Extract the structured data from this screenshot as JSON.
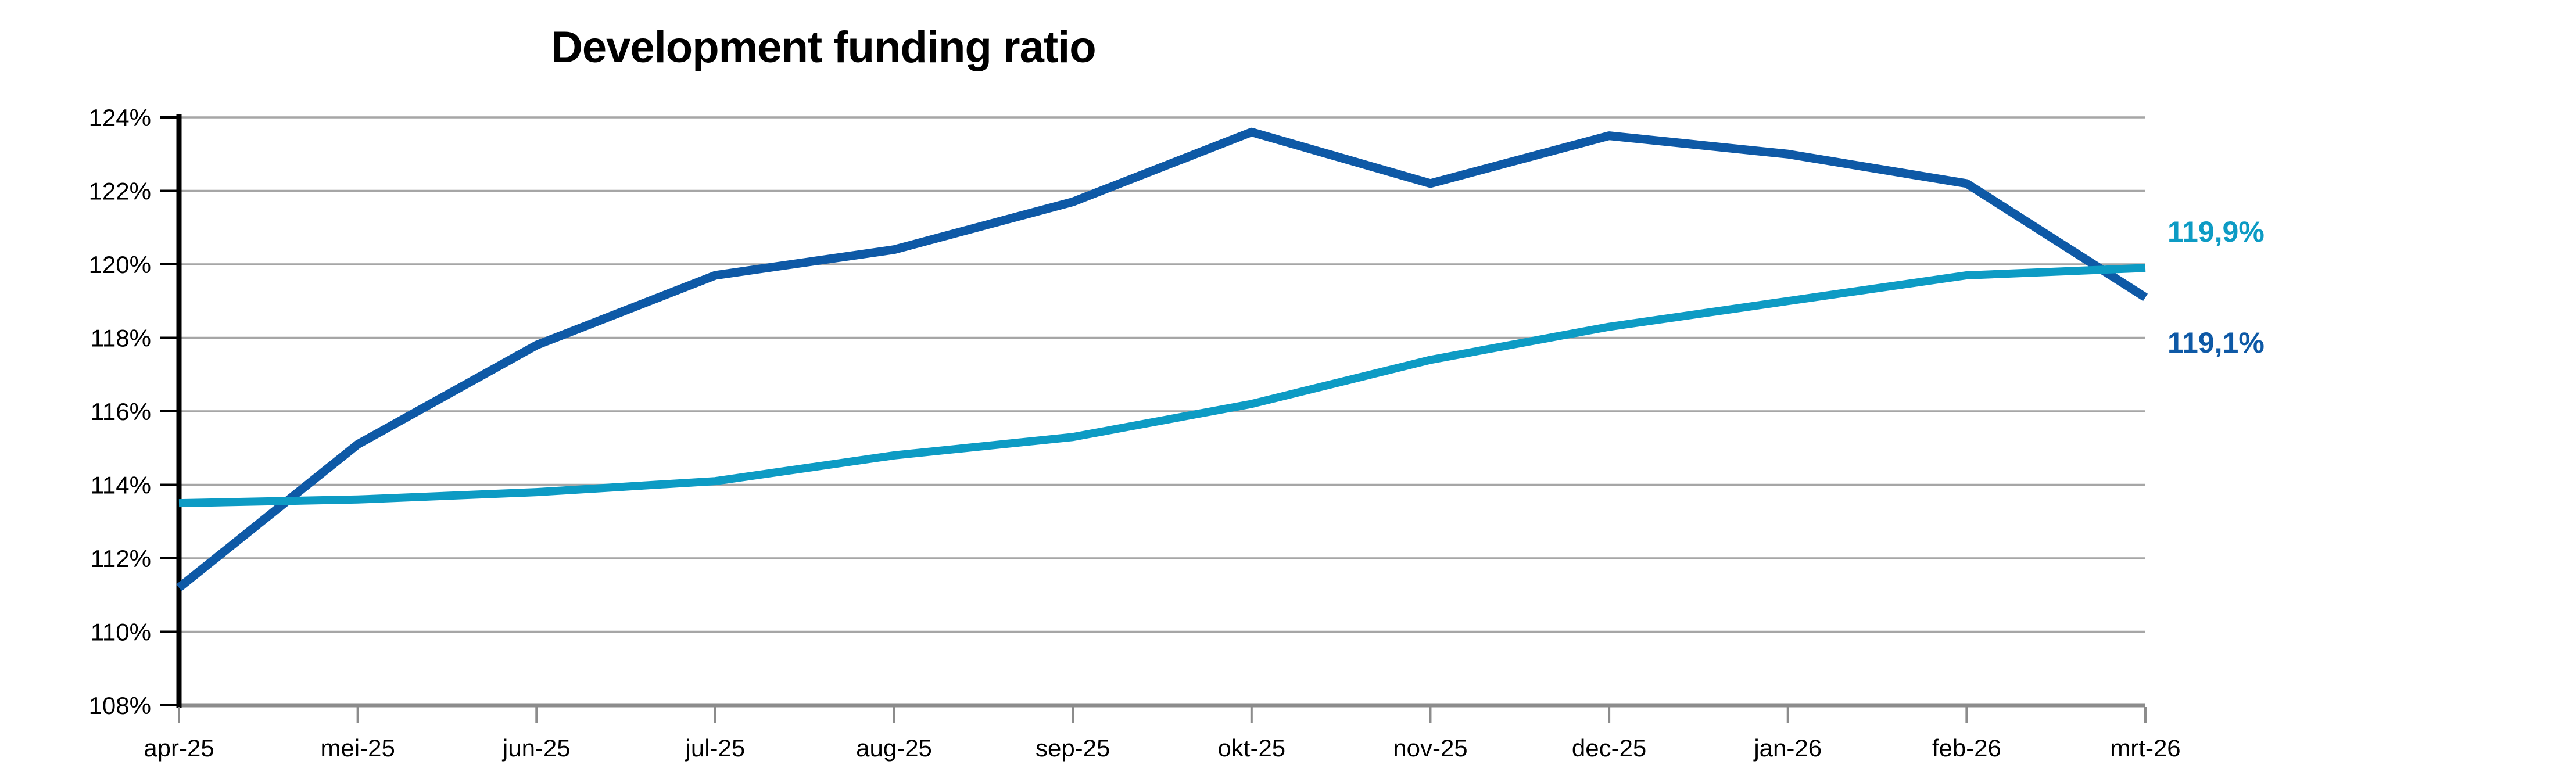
{
  "chart_data": {
    "type": "line",
    "title": "Development funding ratio",
    "categories": [
      "apr-25",
      "mei-25",
      "jun-25",
      "jul-25",
      "aug-25",
      "sep-25",
      "okt-25",
      "nov-25",
      "dec-25",
      "jan-26",
      "feb-26",
      "mrt-26"
    ],
    "series": [
      {
        "name": "dark-blue-series",
        "color": "#0e59a6",
        "stroke_width": 15,
        "end_label": "119,1%",
        "end_label_position": "below",
        "values": [
          111.2,
          115.1,
          117.8,
          119.7,
          120.4,
          121.7,
          123.6,
          122.2,
          123.5,
          123.0,
          122.2,
          119.1
        ]
      },
      {
        "name": "teal-series",
        "color": "#0d9bc4",
        "stroke_width": 14,
        "end_label": "119,9%",
        "end_label_position": "above",
        "values": [
          113.5,
          113.6,
          113.8,
          114.1,
          114.8,
          115.3,
          116.2,
          117.4,
          118.3,
          119.0,
          119.7,
          119.9
        ]
      }
    ],
    "ylim": [
      108,
      124
    ],
    "ytick_step": 2,
    "y_tick_labels": [
      "108%",
      "110%",
      "112%",
      "114%",
      "116%",
      "118%",
      "120%",
      "122%",
      "124%"
    ],
    "grid": true,
    "legend": "none",
    "grid_color": "#a6a6a6",
    "axis_color": "#000000",
    "bottom_axis_color": "#8c8c8c"
  }
}
